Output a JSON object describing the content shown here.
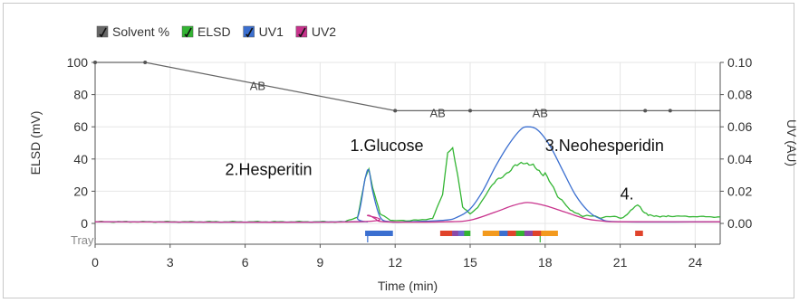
{
  "chart_data": {
    "type": "line",
    "xlabel": "Time (min)",
    "ylabel_left": "ELSD (mV)",
    "ylabel_right": "UV (AU)",
    "xlim": [
      0,
      25
    ],
    "ylim_left": [
      0,
      100
    ],
    "ylim_right": [
      0,
      0.1
    ],
    "x_ticks": [
      "0",
      "3",
      "6",
      "9",
      "12",
      "15",
      "18",
      "21",
      "24"
    ],
    "x_tick_values": [
      0,
      3,
      6,
      9,
      12,
      15,
      18,
      21,
      24
    ],
    "y_left_ticks": [
      "0",
      "20",
      "40",
      "60",
      "80",
      "100"
    ],
    "y_left_tick_values": [
      0,
      20,
      40,
      60,
      80,
      100
    ],
    "y_right_ticks": [
      "0.00",
      "0.02",
      "0.04",
      "0.06",
      "0.08",
      "0.10"
    ],
    "y_right_tick_values": [
      0,
      0.02,
      0.04,
      0.06,
      0.08,
      0.1
    ],
    "grid": true,
    "legend_position": "top-left",
    "legend": [
      {
        "label": "Solvent %",
        "color": "#666666"
      },
      {
        "label": "ELSD",
        "color": "#33b533"
      },
      {
        "label": "UV1",
        "color": "#3b6fd0"
      },
      {
        "label": "UV2",
        "color": "#c8328c"
      }
    ],
    "series": [
      {
        "name": "Solvent %",
        "axis": "left",
        "color": "#666666",
        "x": [
          0,
          2,
          12,
          15,
          22,
          23,
          25
        ],
        "y": [
          100,
          100,
          70,
          70,
          70,
          70,
          70
        ],
        "markers": [
          0,
          2,
          12,
          15,
          22,
          23
        ]
      },
      {
        "name": "ELSD",
        "axis": "left",
        "color": "#33b533",
        "x": [
          0,
          10,
          10.5,
          10.8,
          10.95,
          11.1,
          11.4,
          11.8,
          12.5,
          13.5,
          13.9,
          14.1,
          14.3,
          14.5,
          14.7,
          15.0,
          15.3,
          15.8,
          16.3,
          16.8,
          17.2,
          17.6,
          18.0,
          18.5,
          19.0,
          19.5,
          20.0,
          21.2,
          21.5,
          21.7,
          21.9,
          22.2,
          23,
          25
        ],
        "y": [
          1,
          1,
          4,
          28,
          34,
          22,
          6,
          2,
          1.5,
          3,
          18,
          44,
          47,
          30,
          10,
          6,
          10,
          22,
          30,
          35,
          38,
          35,
          30,
          18,
          8,
          5,
          4,
          4,
          9,
          12,
          8,
          5,
          4.5,
          4
        ]
      },
      {
        "name": "UV1",
        "axis": "right",
        "color": "#3b6fd0",
        "x": [
          0,
          10,
          10.5,
          10.8,
          10.95,
          11.1,
          11.4,
          11.8,
          12.5,
          14,
          14.5,
          15,
          15.5,
          16,
          16.5,
          17.0,
          17.3,
          17.7,
          18.2,
          18.7,
          19.2,
          19.7,
          20.2,
          21,
          25
        ],
        "y": [
          0.001,
          0.001,
          0.004,
          0.028,
          0.033,
          0.02,
          0.004,
          0.001,
          0.001,
          0.002,
          0.004,
          0.009,
          0.02,
          0.035,
          0.048,
          0.058,
          0.06,
          0.058,
          0.048,
          0.033,
          0.018,
          0.008,
          0.003,
          0.001,
          0.001
        ]
      },
      {
        "name": "UV2",
        "axis": "right",
        "color": "#c8328c",
        "x": [
          0,
          10.5,
          10.9,
          11.2,
          11.6,
          14,
          15,
          16,
          16.7,
          17.3,
          18,
          18.8,
          19.6,
          20.3,
          21,
          25
        ],
        "y": [
          0.001,
          0.001,
          0.005,
          0.003,
          0.001,
          0.001,
          0.002,
          0.007,
          0.011,
          0.013,
          0.011,
          0.007,
          0.003,
          0.0015,
          0.001,
          0.001
        ]
      }
    ],
    "segment_labels": [
      {
        "text": "AB",
        "x": 6.5,
        "y": 83
      },
      {
        "text": "AB",
        "x": 13.7,
        "y": 66
      },
      {
        "text": "AB",
        "x": 17.8,
        "y": 66
      }
    ],
    "annotations": [
      {
        "text": "2.Hesperitin",
        "x": 5.2,
        "y": 30
      },
      {
        "text": "1.Glucose",
        "x": 10.2,
        "y": 45
      },
      {
        "text": "3.Neohesperidin",
        "x": 18.0,
        "y": 45
      },
      {
        "text": "4.",
        "x": 21.0,
        "y": 15
      }
    ],
    "tray_label": "Tray:",
    "fractions": [
      {
        "start": 10.8,
        "end": 11.9,
        "colors": [
          "#3b6fd0",
          "#3b6fd0",
          "#3b6fd0"
        ]
      },
      {
        "start": 13.8,
        "end": 15.0,
        "colors": [
          "#e0432b",
          "#e0432b",
          "#8a4aa8",
          "#6a6acf",
          "#33b533"
        ]
      },
      {
        "start": 15.5,
        "end": 18.5,
        "colors": [
          "#f39a1e",
          "#f39a1e",
          "#3b6fd0",
          "#e0432b",
          "#33b533",
          "#8a4aa8",
          "#e0432b",
          "#f39a1e",
          "#f39a1e"
        ]
      },
      {
        "start": 21.6,
        "end": 21.9,
        "colors": [
          "#e0432b"
        ]
      }
    ],
    "fraction_markers": [
      10.9,
      17.8
    ]
  }
}
